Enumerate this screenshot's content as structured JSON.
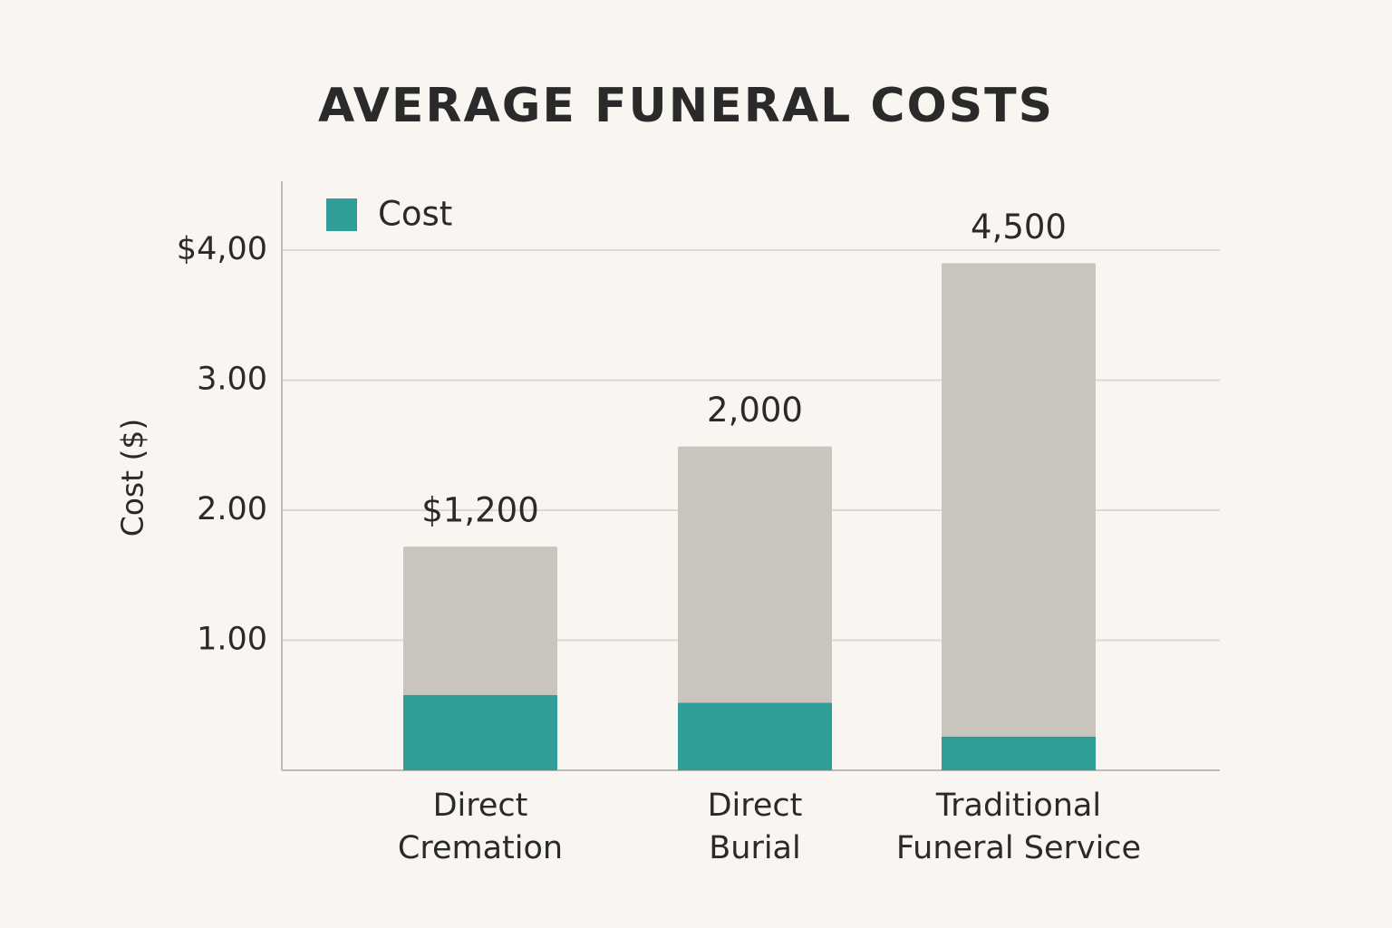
{
  "chart_data": {
    "type": "stacked_bar",
    "title": "AVERAGE FUNERAL COSTS",
    "ylabel": "Cost ($)",
    "categories": [
      "Direct\nCremation",
      "Direct\nBurial",
      "Traditional\nFuneral Service"
    ],
    "series": [
      {
        "name": "Cost",
        "color": "#2e9e96",
        "values": [
          0.58,
          0.52,
          0.26
        ]
      },
      {
        "color": "#c9c4bd",
        "values": [
          1.14,
          1.97,
          3.64
        ]
      }
    ],
    "annotations": [
      "$1,200",
      "2,000",
      "4,500"
    ],
    "ylim": [
      0,
      4.5
    ],
    "yticks": [
      {
        "value": 1,
        "label": "1.00"
      },
      {
        "value": 2,
        "label": "2.00"
      },
      {
        "value": 3,
        "label": "3.00"
      },
      {
        "value": 4,
        "label": "$4,00"
      }
    ],
    "grid": true,
    "legend": "upper left"
  }
}
